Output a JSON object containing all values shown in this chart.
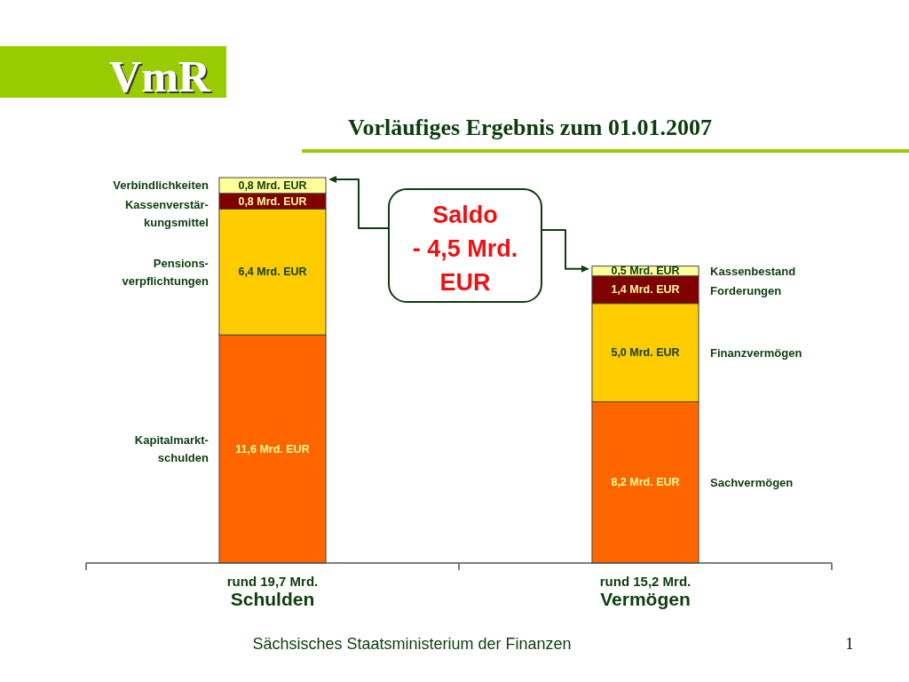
{
  "chart_data": {
    "type": "bar",
    "stacked": true,
    "title": "Vorläufiges Ergebnis zum 01.01.2007",
    "categories": [
      "Schulden",
      "Vermögen"
    ],
    "totals": [
      "rund 19,7 Mrd.",
      "rund 15,2 Mrd."
    ],
    "series": [
      {
        "name": "Kapitalmarkt-\nschulden",
        "color": "#ff6600",
        "values": [
          11.6,
          null
        ],
        "value_labels": [
          "11,6 Mrd. EUR",
          null
        ]
      },
      {
        "name": "Sachvermögen",
        "color": "#ff6600",
        "values": [
          null,
          8.2
        ],
        "value_labels": [
          null,
          "8,2 Mrd. EUR"
        ]
      },
      {
        "name": "Pensions-\nverpflichtungen",
        "color": "#ffcc00",
        "values": [
          6.4,
          null
        ],
        "value_labels": [
          "6,4 Mrd. EUR",
          null
        ]
      },
      {
        "name": "Finanzvermögen",
        "color": "#ffcc00",
        "values": [
          null,
          5.0
        ],
        "value_labels": [
          null,
          "5,0 Mrd. EUR"
        ]
      },
      {
        "name": "Kassenverstär-\nkungsmittel",
        "color": "#800000",
        "values": [
          0.8,
          null
        ],
        "value_labels": [
          "0,8 Mrd. EUR",
          null
        ]
      },
      {
        "name": "Forderungen",
        "color": "#800000",
        "values": [
          null,
          1.4
        ],
        "value_labels": [
          null,
          "1,4 Mrd. EUR"
        ]
      },
      {
        "name": "Verbindlichkeiten",
        "color": "#ffff99",
        "values": [
          0.8,
          null
        ],
        "value_labels": [
          "0,8 Mrd. EUR",
          null
        ]
      },
      {
        "name": "Kassenbestand",
        "color": "#ffff99",
        "values": [
          null,
          0.5
        ],
        "value_labels": [
          null,
          "0,5 Mrd. EUR"
        ]
      }
    ],
    "annotations": [
      "VmR",
      "Saldo\n- 4,5 Mrd.\nEUR",
      "Sächsisches Staatsministerium der Finanzen",
      "1"
    ]
  }
}
